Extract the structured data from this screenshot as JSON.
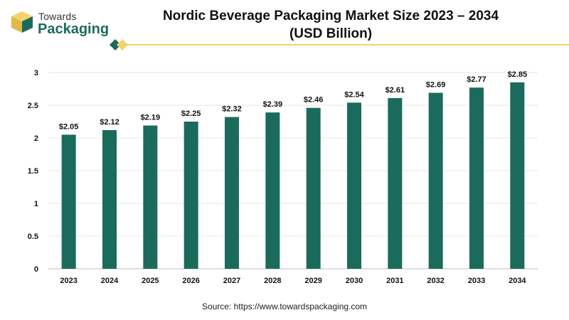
{
  "brand": {
    "line1": "Towards",
    "line2": "Packaging"
  },
  "title": {
    "line1": "Nordic Beverage Packaging Market Size 2023 – 2034",
    "line2": "(USD Billion)"
  },
  "source": "Source: https://www.towardspackaging.com",
  "colors": {
    "bar": "#1b6b5c",
    "accent_gold": "#f3d36b",
    "accent_teal": "#1b6b5c",
    "grid": "#e6e6e6",
    "axis": "#bdbdbd",
    "label": "#111111"
  },
  "chart_data": {
    "type": "bar",
    "categories": [
      "2023",
      "2024",
      "2025",
      "2026",
      "2027",
      "2028",
      "2029",
      "2030",
      "2031",
      "2032",
      "2033",
      "2034"
    ],
    "values": [
      2.05,
      2.12,
      2.19,
      2.25,
      2.32,
      2.39,
      2.46,
      2.54,
      2.61,
      2.69,
      2.77,
      2.85
    ],
    "data_labels": [
      "$2.05",
      "$2.12",
      "$2.19",
      "$2.25",
      "$2.32",
      "$2.39",
      "$2.46",
      "$2.54",
      "$2.61",
      "$2.69",
      "$2.77",
      "$2.85"
    ],
    "yticks": [
      0,
      0.5,
      1,
      1.5,
      2,
      2.5,
      3
    ],
    "ytick_labels": [
      "0",
      "0.5",
      "1",
      "1.5",
      "2",
      "2.5",
      "3"
    ],
    "ylim": [
      0,
      3
    ],
    "grid": true,
    "legend": "none",
    "title": "Nordic Beverage Packaging Market Size 2023 – 2034 (USD Billion)",
    "xlabel": "",
    "ylabel": ""
  }
}
